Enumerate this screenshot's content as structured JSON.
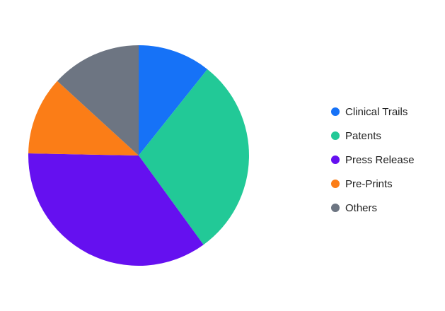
{
  "chart_data": {
    "type": "pie",
    "title": "",
    "start_angle_deg": 0,
    "direction": "clockwise",
    "legend_position": "right",
    "slices": [
      {
        "label": "Clinical Trails",
        "value": 10.7,
        "color": "#1672f7"
      },
      {
        "label": "Patents",
        "value": 29.3,
        "color": "#22c997"
      },
      {
        "label": "Press Release",
        "value": 35.3,
        "color": "#6510f0"
      },
      {
        "label": "Pre-Prints",
        "value": 11.5,
        "color": "#fb7d17"
      },
      {
        "label": "Others",
        "value": 13.2,
        "color": "#6d7582"
      }
    ]
  }
}
